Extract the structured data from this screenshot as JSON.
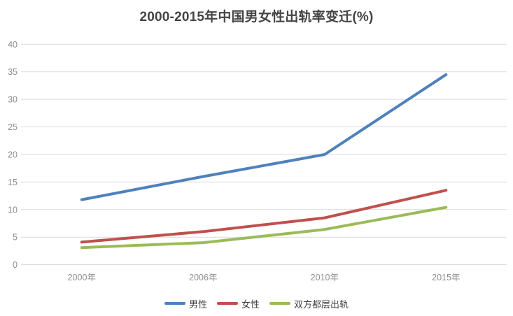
{
  "page": {
    "background_color": "#ffffff"
  },
  "chart_data": {
    "type": "line",
    "title": "2000-2015年中国男女性出轨率变迁(%)",
    "categories": [
      "2000年",
      "2006年",
      "2010年",
      "2015年"
    ],
    "series": [
      {
        "name": "男性",
        "color": "#4F81BD",
        "values": [
          11.8,
          16.0,
          20.0,
          34.5
        ]
      },
      {
        "name": "女性",
        "color": "#C0504D",
        "values": [
          4.1,
          6.0,
          8.5,
          13.5
        ]
      },
      {
        "name": "双方都层出轨",
        "color": "#9BBB59",
        "values": [
          3.1,
          4.0,
          6.4,
          10.4
        ]
      }
    ],
    "xlabel": "",
    "ylabel": "",
    "ylim": [
      0,
      40
    ],
    "ytick_step": 5,
    "ytick_labels": [
      "0",
      "5",
      "10",
      "15",
      "20",
      "25",
      "30",
      "35",
      "40"
    ],
    "grid": true,
    "legend_position": "bottom"
  },
  "style": {
    "grid_color": "#d9d9d9",
    "axis_label_color": "#8e8e8e",
    "title_color": "#444444",
    "legend_text_color": "#404040",
    "line_width": 4
  }
}
